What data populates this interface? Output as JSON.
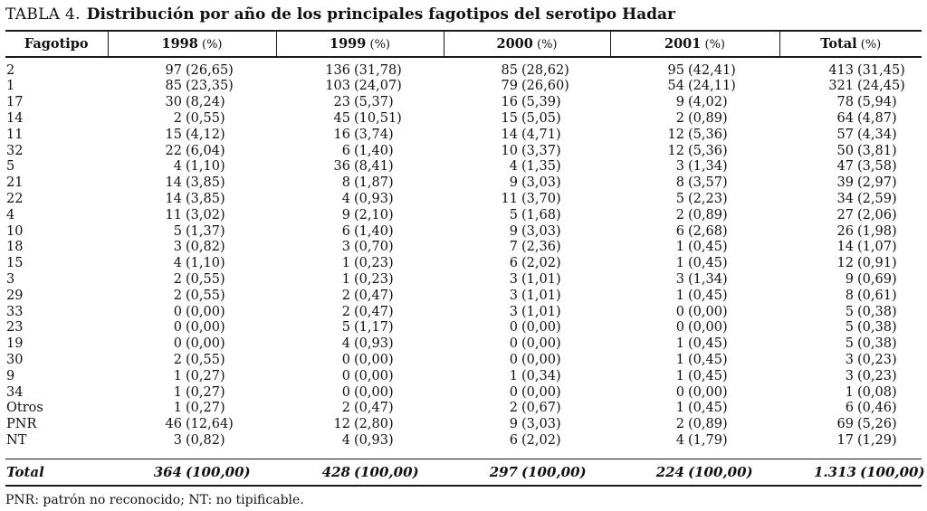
{
  "title": {
    "tag": "TABLA 4.",
    "text": "Distribución por año de los principales fagotipos del serotipo Hadar"
  },
  "table": {
    "columns": [
      {
        "label": "Fagotipo",
        "unit": ""
      },
      {
        "label": "1998",
        "unit": "(%)"
      },
      {
        "label": "1999",
        "unit": "(%)"
      },
      {
        "label": "2000",
        "unit": "(%)"
      },
      {
        "label": "2001",
        "unit": "(%)"
      },
      {
        "label": "Total",
        "unit": "(%)"
      }
    ],
    "rows": [
      {
        "label": "2",
        "cells": [
          [
            "97",
            "26,65"
          ],
          [
            "136",
            "31,78"
          ],
          [
            "85",
            "28,62"
          ],
          [
            "95",
            "42,41"
          ],
          [
            "413",
            "31,45"
          ]
        ]
      },
      {
        "label": "1",
        "cells": [
          [
            "85",
            "23,35"
          ],
          [
            "103",
            "24,07"
          ],
          [
            "79",
            "26,60"
          ],
          [
            "54",
            "24,11"
          ],
          [
            "321",
            "24,45"
          ]
        ]
      },
      {
        "label": "17",
        "cells": [
          [
            "30",
            "8,24"
          ],
          [
            "23",
            "5,37"
          ],
          [
            "16",
            "5,39"
          ],
          [
            "9",
            "4,02"
          ],
          [
            "78",
            "5,94"
          ]
        ]
      },
      {
        "label": "14",
        "cells": [
          [
            "2",
            "0,55"
          ],
          [
            "45",
            "10,51"
          ],
          [
            "15",
            "5,05"
          ],
          [
            "2",
            "0,89"
          ],
          [
            "64",
            "4,87"
          ]
        ]
      },
      {
        "label": "11",
        "cells": [
          [
            "15",
            "4,12"
          ],
          [
            "16",
            "3,74"
          ],
          [
            "14",
            "4,71"
          ],
          [
            "12",
            "5,36"
          ],
          [
            "57",
            "4,34"
          ]
        ]
      },
      {
        "label": "32",
        "cells": [
          [
            "22",
            "6,04"
          ],
          [
            "6",
            "1,40"
          ],
          [
            "10",
            "3,37"
          ],
          [
            "12",
            "5,36"
          ],
          [
            "50",
            "3,81"
          ]
        ]
      },
      {
        "label": "5",
        "cells": [
          [
            "4",
            "1,10"
          ],
          [
            "36",
            "8,41"
          ],
          [
            "4",
            "1,35"
          ],
          [
            "3",
            "1,34"
          ],
          [
            "47",
            "3,58"
          ]
        ]
      },
      {
        "label": "21",
        "cells": [
          [
            "14",
            "3,85"
          ],
          [
            "8",
            "1,87"
          ],
          [
            "9",
            "3,03"
          ],
          [
            "8",
            "3,57"
          ],
          [
            "39",
            "2,97"
          ]
        ]
      },
      {
        "label": "22",
        "cells": [
          [
            "14",
            "3,85"
          ],
          [
            "4",
            "0,93"
          ],
          [
            "11",
            "3,70"
          ],
          [
            "5",
            "2,23"
          ],
          [
            "34",
            "2,59"
          ]
        ]
      },
      {
        "label": "4",
        "cells": [
          [
            "11",
            "3,02"
          ],
          [
            "9",
            "2,10"
          ],
          [
            "5",
            "1,68"
          ],
          [
            "2",
            "0,89"
          ],
          [
            "27",
            "2,06"
          ]
        ]
      },
      {
        "label": "10",
        "cells": [
          [
            "5",
            "1,37"
          ],
          [
            "6",
            "1,40"
          ],
          [
            "9",
            "3,03"
          ],
          [
            "6",
            "2,68"
          ],
          [
            "26",
            "1,98"
          ]
        ]
      },
      {
        "label": "18",
        "cells": [
          [
            "3",
            "0,82"
          ],
          [
            "3",
            "0,70"
          ],
          [
            "7",
            "2,36"
          ],
          [
            "1",
            "0,45"
          ],
          [
            "14",
            "1,07"
          ]
        ]
      },
      {
        "label": "15",
        "cells": [
          [
            "4",
            "1,10"
          ],
          [
            "1",
            "0,23"
          ],
          [
            "6",
            "2,02"
          ],
          [
            "1",
            "0,45"
          ],
          [
            "12",
            "0,91"
          ]
        ]
      },
      {
        "label": "3",
        "cells": [
          [
            "2",
            "0,55"
          ],
          [
            "1",
            "0,23"
          ],
          [
            "3",
            "1,01"
          ],
          [
            "3",
            "1,34"
          ],
          [
            "9",
            "0,69"
          ]
        ]
      },
      {
        "label": "29",
        "cells": [
          [
            "2",
            "0,55"
          ],
          [
            "2",
            "0,47"
          ],
          [
            "3",
            "1,01"
          ],
          [
            "1",
            "0,45"
          ],
          [
            "8",
            "0,61"
          ]
        ]
      },
      {
        "label": "33",
        "cells": [
          [
            "0",
            "0,00"
          ],
          [
            "2",
            "0,47"
          ],
          [
            "3",
            "1,01"
          ],
          [
            "0",
            "0,00"
          ],
          [
            "5",
            "0,38"
          ]
        ]
      },
      {
        "label": "23",
        "cells": [
          [
            "0",
            "0,00"
          ],
          [
            "5",
            "1,17"
          ],
          [
            "0",
            "0,00"
          ],
          [
            "0",
            "0,00"
          ],
          [
            "5",
            "0,38"
          ]
        ]
      },
      {
        "label": "19",
        "cells": [
          [
            "0",
            "0,00"
          ],
          [
            "4",
            "0,93"
          ],
          [
            "0",
            "0,00"
          ],
          [
            "1",
            "0,45"
          ],
          [
            "5",
            "0,38"
          ]
        ]
      },
      {
        "label": "30",
        "cells": [
          [
            "2",
            "0,55"
          ],
          [
            "0",
            "0,00"
          ],
          [
            "0",
            "0,00"
          ],
          [
            "1",
            "0,45"
          ],
          [
            "3",
            "0,23"
          ]
        ]
      },
      {
        "label": "9",
        "cells": [
          [
            "1",
            "0,27"
          ],
          [
            "0",
            "0,00"
          ],
          [
            "1",
            "0,34"
          ],
          [
            "1",
            "0,45"
          ],
          [
            "3",
            "0,23"
          ]
        ]
      },
      {
        "label": "34",
        "cells": [
          [
            "1",
            "0,27"
          ],
          [
            "0",
            "0,00"
          ],
          [
            "0",
            "0,00"
          ],
          [
            "0",
            "0,00"
          ],
          [
            "1",
            "0,08"
          ]
        ]
      },
      {
        "label": "Otros",
        "cells": [
          [
            "1",
            "0,27"
          ],
          [
            "2",
            "0,47"
          ],
          [
            "2",
            "0,67"
          ],
          [
            "1",
            "0,45"
          ],
          [
            "6",
            "0,46"
          ]
        ]
      },
      {
        "label": "PNR",
        "cells": [
          [
            "46",
            "12,64"
          ],
          [
            "12",
            "2,80"
          ],
          [
            "9",
            "3,03"
          ],
          [
            "2",
            "0,89"
          ],
          [
            "69",
            "5,26"
          ]
        ]
      },
      {
        "label": "NT",
        "cells": [
          [
            "3",
            "0,82"
          ],
          [
            "4",
            "0,93"
          ],
          [
            "6",
            "2,02"
          ],
          [
            "4",
            "1,79"
          ],
          [
            "17",
            "1,29"
          ]
        ]
      }
    ],
    "total_row": {
      "label": "Total",
      "cells": [
        [
          "364",
          "100,00"
        ],
        [
          "428",
          "100,00"
        ],
        [
          "297",
          "100,00"
        ],
        [
          "224",
          "100,00"
        ],
        [
          "1.313",
          "100,00"
        ]
      ]
    }
  },
  "footnote": "PNR: patrón no reconocido; NT: no tipificable."
}
